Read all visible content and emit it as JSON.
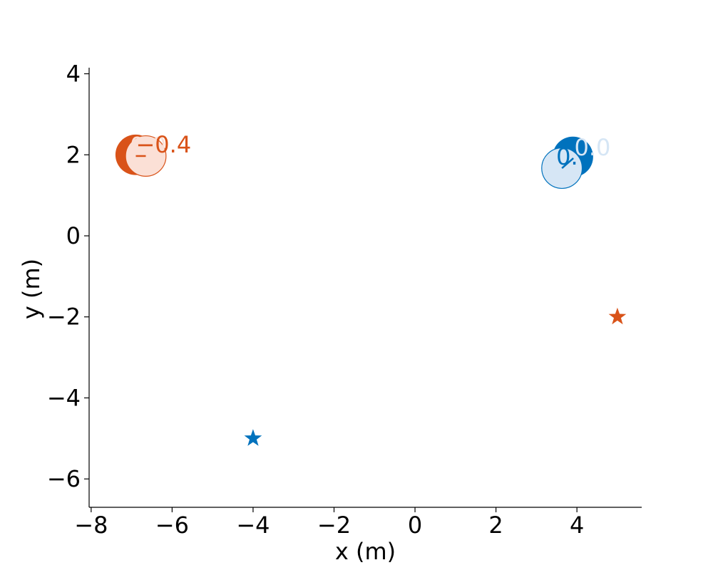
{
  "chart_data": {
    "type": "scatter",
    "title": "",
    "xlabel": "x (m)",
    "ylabel": "y (m)",
    "xlim": [
      -8.05,
      5.6
    ],
    "ylim": [
      -6.7,
      4.15
    ],
    "xticks": [
      -8,
      -6,
      -4,
      -2,
      0,
      2,
      4
    ],
    "yticks": [
      -6,
      -4,
      -2,
      0,
      2,
      4
    ],
    "xtick_labels": [
      "−8",
      "−6",
      "−4",
      "−2",
      "0",
      "2",
      "4"
    ],
    "ytick_labels": [
      "−6",
      "−4",
      "−2",
      "0",
      "2",
      "4"
    ],
    "grid": false,
    "agents": [
      {
        "color": "#d95319",
        "light_color": "#fbe0d6",
        "current": {
          "x": -6.9,
          "y": 2.0
        },
        "predicted": {
          "x": -6.65,
          "y": 1.97
        },
        "goal": {
          "x": 5.0,
          "y": -2.0
        },
        "label_current": "0.0",
        "label_predicted": "−0.4"
      },
      {
        "color": "#0072bd",
        "light_color": "#d6e6f5",
        "current": {
          "x": 3.9,
          "y": 1.95
        },
        "predicted": {
          "x": 3.63,
          "y": 1.67
        },
        "goal": {
          "x": -4.0,
          "y": -5.0
        },
        "label_current": "0.0",
        "label_predicted": "0."
      }
    ]
  }
}
